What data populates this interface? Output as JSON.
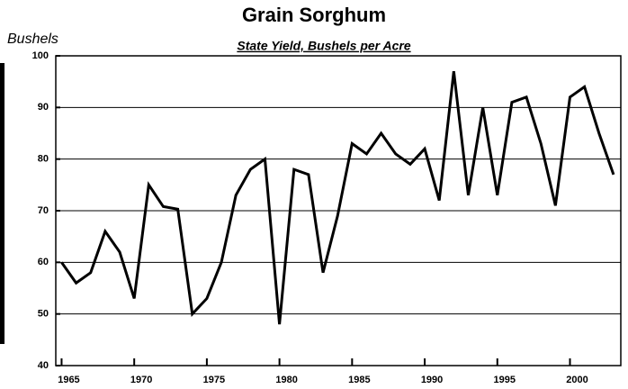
{
  "chart_data": {
    "type": "line",
    "title": "Grain Sorghum",
    "subtitle": "State Yield, Bushels per Acre",
    "y_label": "Bushels",
    "x": [
      1965,
      1966,
      1967,
      1968,
      1969,
      1970,
      1971,
      1972,
      1973,
      1974,
      1975,
      1976,
      1977,
      1978,
      1979,
      1980,
      1981,
      1982,
      1983,
      1984,
      1985,
      1986,
      1987,
      1988,
      1989,
      1990,
      1991,
      1992,
      1993,
      1994,
      1995,
      1996,
      1997,
      1998,
      1999,
      2000,
      2001,
      2002,
      2003
    ],
    "series": [
      {
        "name": "State Yield",
        "color": "#000000",
        "values": [
          60,
          56,
          58,
          66,
          62,
          53,
          75,
          70.8,
          70.3,
          50,
          53,
          60,
          73,
          78,
          80,
          48,
          78,
          77,
          58,
          69,
          83,
          81,
          85,
          81,
          79,
          82,
          72,
          97,
          73,
          90,
          73,
          91,
          92,
          83,
          71,
          92,
          94,
          85,
          77
        ]
      }
    ],
    "xlim": [
      1964.6,
      2003.5
    ],
    "xticks": [
      1965,
      1970,
      1975,
      1980,
      1985,
      1990,
      1995,
      2000
    ],
    "ylim": [
      40,
      100
    ],
    "yticks": [
      40,
      50,
      60,
      70,
      80,
      90,
      100
    ],
    "grid": true
  }
}
